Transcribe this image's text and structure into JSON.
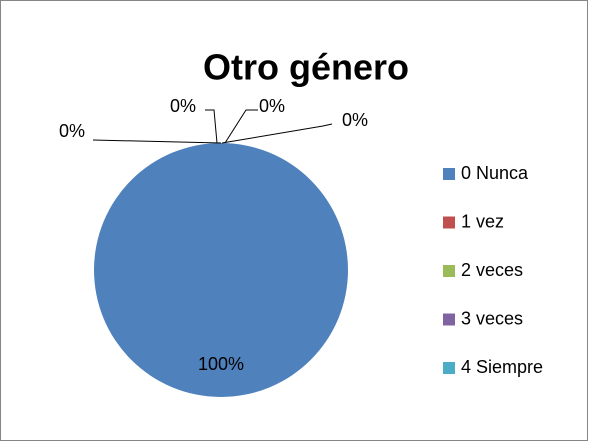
{
  "chart_data": {
    "type": "pie",
    "title": "Otro género",
    "categories": [
      "0 Nunca",
      "1 vez",
      "2 veces",
      "3 veces",
      "4 Siempre"
    ],
    "values": [
      100,
      0,
      0,
      0,
      0
    ],
    "value_labels": [
      "100%",
      "0%",
      "0%",
      "0%",
      "0%"
    ],
    "colors": [
      "#4f81bd",
      "#c0504d",
      "#9bbb59",
      "#8064a2",
      "#4bacc6"
    ],
    "legend": "right"
  }
}
